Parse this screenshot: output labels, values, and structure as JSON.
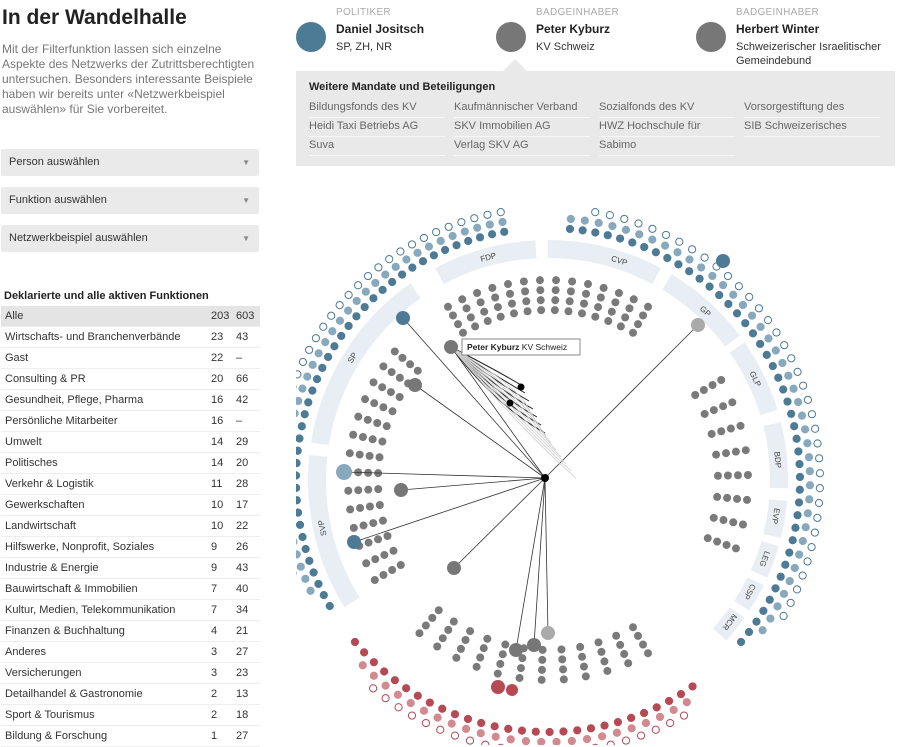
{
  "title": "In der Wandelhalle",
  "intro": "Mit der Filterfunktion lassen sich einzelne Aspekte des Netzwerks der Zutrittsberechtigten untersuchen. Besonders interessante Beispiele haben wir bereits unter «Netzwerkbeispiel auswählen» für Sie vorbereitet.",
  "selects": {
    "person": "Person auswählen",
    "funktion": "Funktion auswählen",
    "beispiel": "Netzwerkbeispiel auswählen"
  },
  "table": {
    "title": "Deklarierte und alle aktiven Funktionen",
    "rows": [
      {
        "label": "Alle",
        "a": "203",
        "b": "603"
      },
      {
        "label": "Wirtschafts- und Branchenverbände",
        "a": "23",
        "b": "43"
      },
      {
        "label": "Gast",
        "a": "22",
        "b": "–"
      },
      {
        "label": "Consulting & PR",
        "a": "20",
        "b": "66"
      },
      {
        "label": "Gesundheit, Pflege, Pharma",
        "a": "16",
        "b": "42"
      },
      {
        "label": "Persönliche Mitarbeiter",
        "a": "16",
        "b": "–"
      },
      {
        "label": "Umwelt",
        "a": "14",
        "b": "29"
      },
      {
        "label": "Politisches",
        "a": "14",
        "b": "20"
      },
      {
        "label": "Verkehr & Logistik",
        "a": "11",
        "b": "28"
      },
      {
        "label": "Gewerkschaften",
        "a": "10",
        "b": "17"
      },
      {
        "label": "Landwirtschaft",
        "a": "10",
        "b": "22"
      },
      {
        "label": "Hilfswerke, Nonprofit, Soziales",
        "a": "9",
        "b": "26"
      },
      {
        "label": "Industrie & Energie",
        "a": "9",
        "b": "43"
      },
      {
        "label": "Bauwirtschaft & Immobilien",
        "a": "7",
        "b": "40"
      },
      {
        "label": "Kultur, Medien, Telekommunikation",
        "a": "7",
        "b": "34"
      },
      {
        "label": "Finanzen & Buchhaltung",
        "a": "4",
        "b": "21"
      },
      {
        "label": "Anderes",
        "a": "3",
        "b": "27"
      },
      {
        "label": "Versicherungen",
        "a": "3",
        "b": "23"
      },
      {
        "label": "Detailhandel & Gastronomie",
        "a": "2",
        "b": "13"
      },
      {
        "label": "Sport & Tourismus",
        "a": "2",
        "b": "18"
      },
      {
        "label": "Bildung & Forschung",
        "a": "1",
        "b": "27"
      }
    ]
  },
  "people": [
    {
      "caption": "POLITIKER",
      "name": "Daniel Jositsch",
      "detail": "SP, ZH, NR",
      "color": "#4d7a95"
    },
    {
      "caption": "BADGEINHABER",
      "name": "Peter Kyburz",
      "detail": "KV Schweiz",
      "color": "#777777"
    },
    {
      "caption": "BADGEINHABER",
      "name": "Herbert Winter",
      "detail": "Schweizerischer Israelitischer Gemeindebund",
      "color": "#777777"
    }
  ],
  "mandates": {
    "title": "Weitere Mandate und Beteiligungen",
    "items": [
      "Bildungsfonds des KV",
      "Kaufmännischer Verband",
      "Sozialfonds des KV",
      "Vorsorgestiftung des",
      "Heidi Taxi Betriebs AG",
      "SKV Immobilien AG",
      "HWZ Hochschule für",
      "SIB Schweizerisches",
      "Suva",
      "Verlag SKV AG",
      "Sabimo"
    ]
  },
  "network": {
    "tooltip_name": "Peter Kyburz",
    "tooltip_org": "KV Schweiz",
    "council_parties": [
      "FDP",
      "CVP",
      "GP",
      "GLP",
      "BDP",
      "EVP",
      "LEG",
      "CSP",
      "MCR",
      "SP",
      "SVP"
    ],
    "senate_parties": [
      "CVP",
      "SP",
      "FDP",
      "SVP",
      "GLP",
      "BDP",
      "GP"
    ],
    "colors": {
      "nr": "#4d7a95",
      "sr": "#b54a55",
      "lobby": "#7a7a7a",
      "band": "#e8eef3",
      "band_sr": "#f3e6e7"
    }
  }
}
